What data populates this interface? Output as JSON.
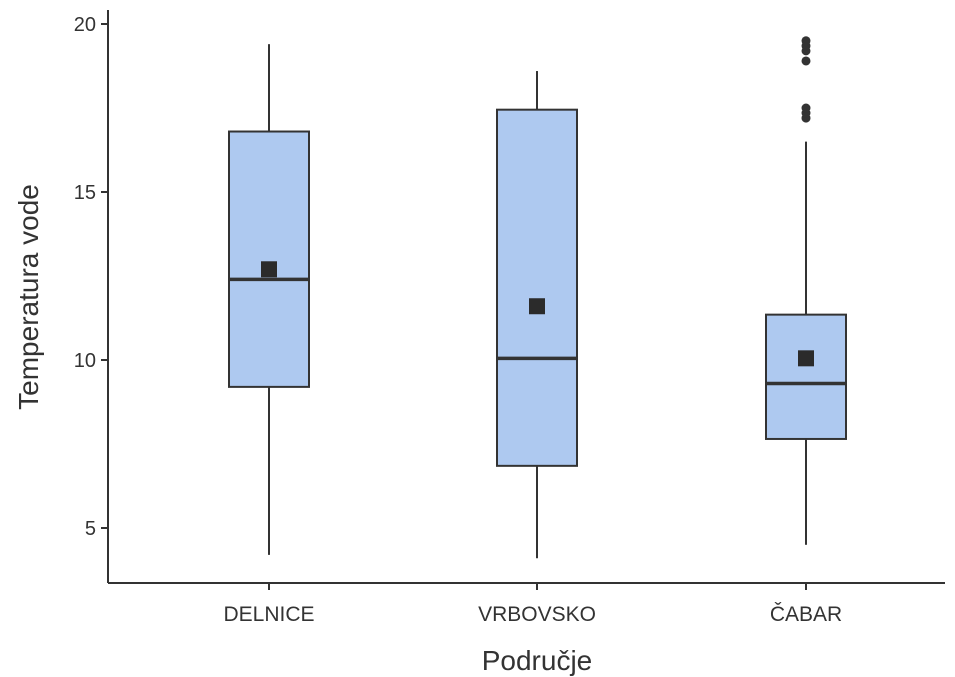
{
  "chart_data": {
    "type": "box",
    "xlabel": "Područje",
    "ylabel": "Temperatura vode",
    "ylim": [
      3.3,
      20.4
    ],
    "yticks": [
      5,
      10,
      15,
      20
    ],
    "grid": false,
    "legend": "none",
    "categories": [
      "DELNICE",
      "VRBOVSKO",
      "ČABAR"
    ],
    "boxes": [
      {
        "category": "DELNICE",
        "whisker_low": 4.2,
        "q1": 9.2,
        "median": 12.4,
        "q3": 16.8,
        "whisker_high": 19.4,
        "mean": 12.7,
        "outliers": []
      },
      {
        "category": "VRBOVSKO",
        "whisker_low": 4.1,
        "q1": 6.85,
        "median": 10.05,
        "q3": 17.45,
        "whisker_high": 18.6,
        "mean": 11.6,
        "outliers": []
      },
      {
        "category": "ČABAR",
        "whisker_low": 4.5,
        "q1": 7.65,
        "median": 9.3,
        "q3": 11.35,
        "whisker_high": 16.5,
        "mean": 10.05,
        "outliers": [
          17.2,
          17.35,
          17.5,
          18.9,
          19.2,
          19.35,
          19.5
        ]
      }
    ],
    "colors": {
      "box_fill": "#aec9f0",
      "box_stroke": "#333333",
      "axis": "#333333",
      "mean_marker": "#2b2b2b",
      "outlier": "#333333"
    }
  }
}
